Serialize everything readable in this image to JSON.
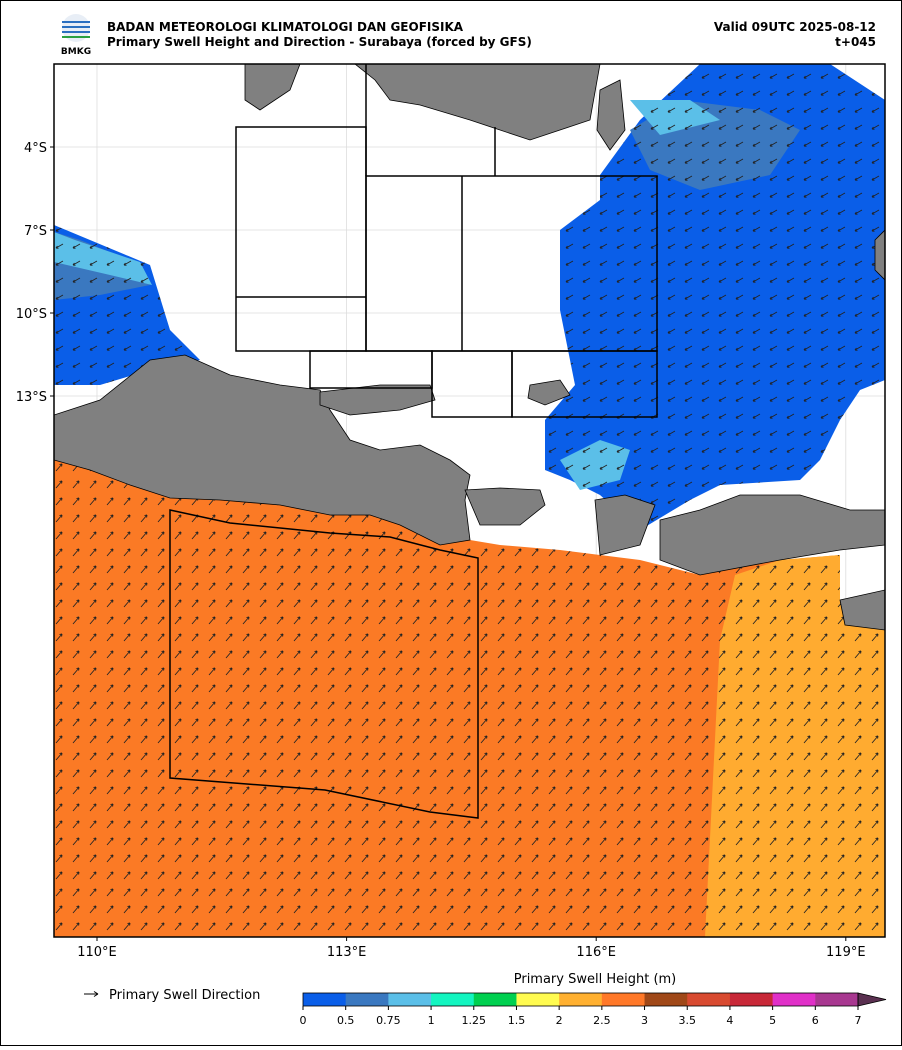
{
  "header": {
    "agency": "BADAN METEOROLOGI KLIMATOLOGI DAN GEOFISIKA",
    "subtitle": "Primary Swell Height and Direction - Surabaya (forced by GFS)",
    "valid": "Valid 09UTC 2025-08-12",
    "lead": "t+045",
    "logo_text": "BMKG"
  },
  "map": {
    "lat_labels": [
      "4°S",
      "7°S",
      "10°S",
      "13°S"
    ],
    "lon_labels": [
      "110°E",
      "113°E",
      "116°E",
      "119°E"
    ]
  },
  "legend": {
    "arrow_label": "Primary Swell Direction"
  },
  "colorbar": {
    "title": "Primary Swell Height (m)",
    "ticks": [
      0,
      0.5,
      0.75,
      1,
      1.25,
      1.5,
      2,
      2.5,
      3,
      3.5,
      4,
      5,
      6,
      7
    ],
    "colors": [
      "#0a5ee8",
      "#3a78c0",
      "#5bbfe8",
      "#13f5c0",
      "#00d050",
      "#fffb50",
      "#ffb030",
      "#ff7828",
      "#a04818",
      "#d84a30",
      "#c82838",
      "#e030c8",
      "#a83890"
    ],
    "extend_color": "#5a3050"
  }
}
